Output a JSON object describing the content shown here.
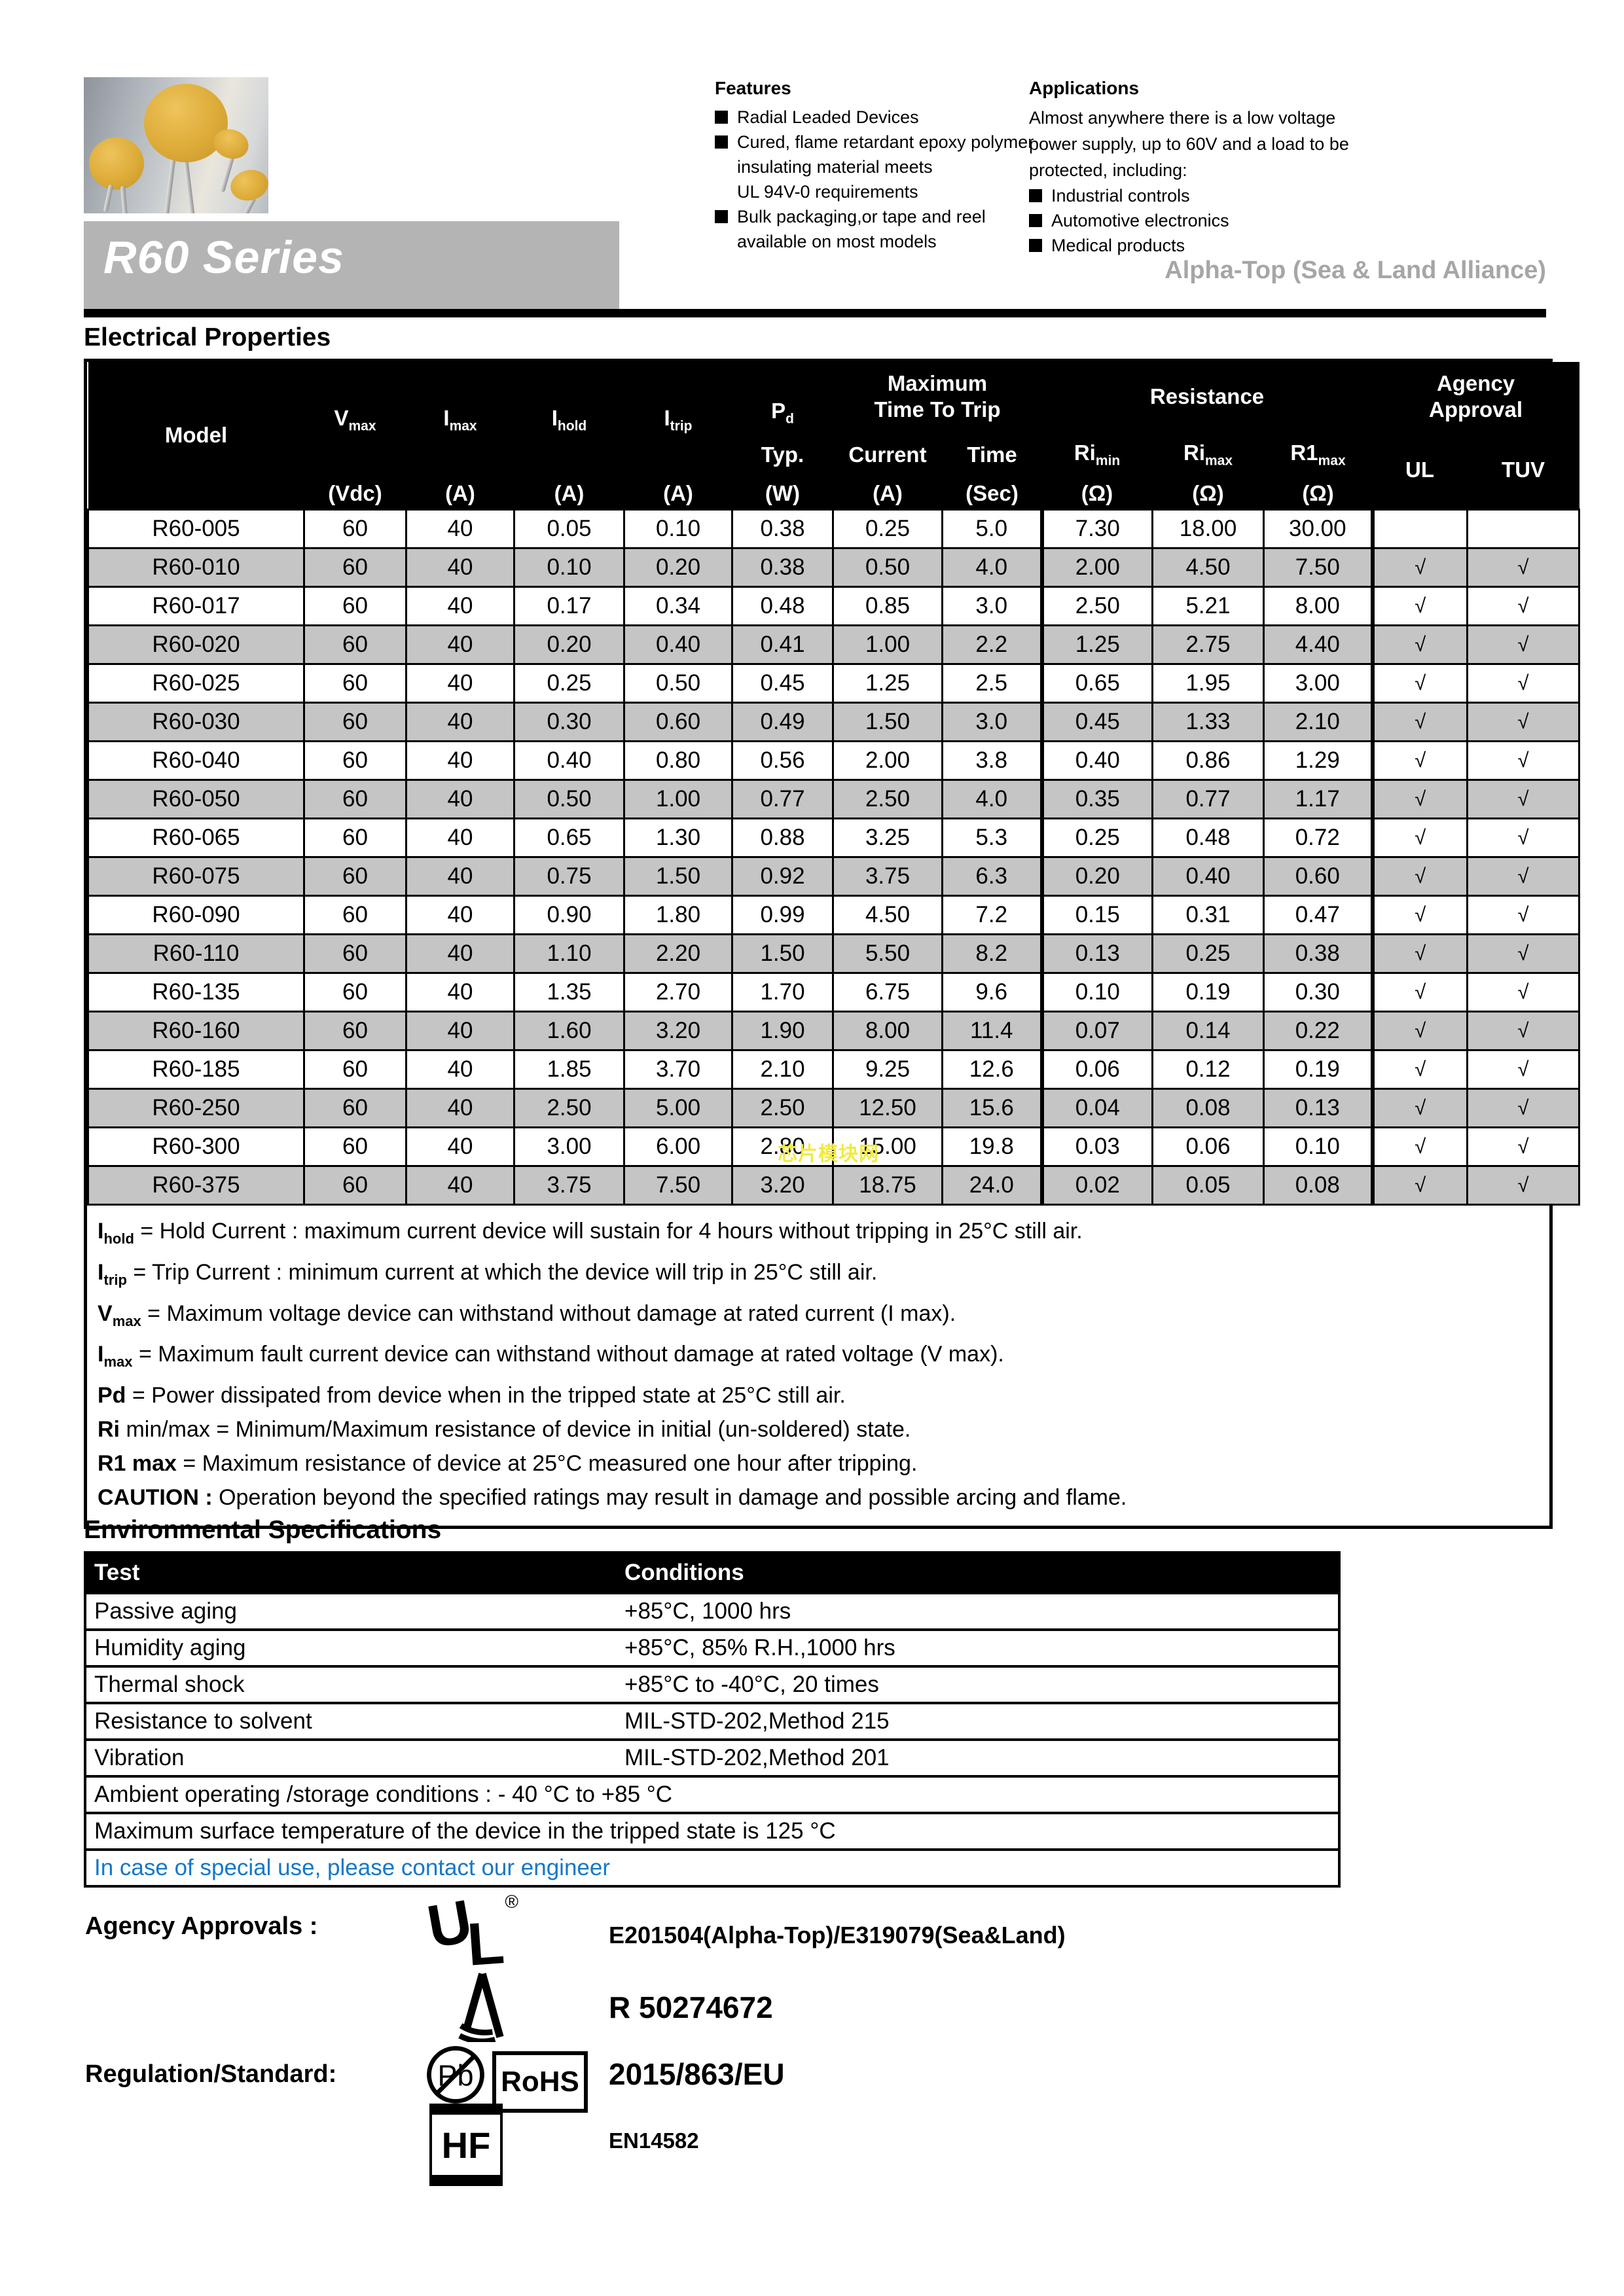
{
  "header": {
    "features": {
      "title": "Features",
      "items": [
        {
          "lines": [
            "Radial Leaded Devices"
          ]
        },
        {
          "lines": [
            "Cured, flame retardant epoxy polymer",
            "insulating material meets",
            "UL 94V-0 requirements"
          ]
        },
        {
          "lines": [
            "Bulk packaging,or tape and reel",
            "available on most models"
          ]
        }
      ]
    },
    "applications": {
      "title": "Applications",
      "intro_lines": [
        "Almost anywhere there is a low voltage",
        "power supply, up to 60V and a load to be",
        "protected, including:"
      ],
      "items": [
        "Industrial controls",
        "Automotive electronics",
        "Medical products"
      ]
    },
    "series_banner": "R60 Series",
    "alliance": "Alpha-Top (Sea & Land Alliance)"
  },
  "watermark": "芯片模块网",
  "electrical": {
    "section_title": "Electrical Properties",
    "header": {
      "model": "Model",
      "vmax_main": "V",
      "vmax_sub": "max",
      "imax_main": "I",
      "imax_sub": "max",
      "ihold_main": "I",
      "ihold_sub": "hold",
      "itrip_main": "I",
      "itrip_sub": "trip",
      "pd_main": "P",
      "pd_sub": "d",
      "pd_typ": "Typ.",
      "mtt_line1": "Maximum",
      "mtt_line2": "Time To Trip",
      "current": "Current",
      "time": "Time",
      "resistance": "Resistance",
      "rimin_main": "Ri",
      "rimin_sub": "min",
      "rimax_main": "Ri",
      "rimax_sub": "max",
      "r1max_main": "R1",
      "r1max_sub": "max",
      "agency_line1": "Agency",
      "agency_line2": "Approval",
      "ul": "UL",
      "tuv": "TUV",
      "units": [
        "(Vdc)",
        "(A)",
        "(A)",
        "(A)",
        "(W)",
        "(A)",
        "(Sec)",
        "(Ω)",
        "(Ω)",
        "(Ω)"
      ]
    },
    "rows": [
      [
        "R60-005",
        "60",
        "40",
        "0.05",
        "0.10",
        "0.38",
        "0.25",
        "5.0",
        "7.30",
        "18.00",
        "30.00",
        "",
        ""
      ],
      [
        "R60-010",
        "60",
        "40",
        "0.10",
        "0.20",
        "0.38",
        "0.50",
        "4.0",
        "2.00",
        "4.50",
        "7.50",
        "√",
        "√"
      ],
      [
        "R60-017",
        "60",
        "40",
        "0.17",
        "0.34",
        "0.48",
        "0.85",
        "3.0",
        "2.50",
        "5.21",
        "8.00",
        "√",
        "√"
      ],
      [
        "R60-020",
        "60",
        "40",
        "0.20",
        "0.40",
        "0.41",
        "1.00",
        "2.2",
        "1.25",
        "2.75",
        "4.40",
        "√",
        "√"
      ],
      [
        "R60-025",
        "60",
        "40",
        "0.25",
        "0.50",
        "0.45",
        "1.25",
        "2.5",
        "0.65",
        "1.95",
        "3.00",
        "√",
        "√"
      ],
      [
        "R60-030",
        "60",
        "40",
        "0.30",
        "0.60",
        "0.49",
        "1.50",
        "3.0",
        "0.45",
        "1.33",
        "2.10",
        "√",
        "√"
      ],
      [
        "R60-040",
        "60",
        "40",
        "0.40",
        "0.80",
        "0.56",
        "2.00",
        "3.8",
        "0.40",
        "0.86",
        "1.29",
        "√",
        "√"
      ],
      [
        "R60-050",
        "60",
        "40",
        "0.50",
        "1.00",
        "0.77",
        "2.50",
        "4.0",
        "0.35",
        "0.77",
        "1.17",
        "√",
        "√"
      ],
      [
        "R60-065",
        "60",
        "40",
        "0.65",
        "1.30",
        "0.88",
        "3.25",
        "5.3",
        "0.25",
        "0.48",
        "0.72",
        "√",
        "√"
      ],
      [
        "R60-075",
        "60",
        "40",
        "0.75",
        "1.50",
        "0.92",
        "3.75",
        "6.3",
        "0.20",
        "0.40",
        "0.60",
        "√",
        "√"
      ],
      [
        "R60-090",
        "60",
        "40",
        "0.90",
        "1.80",
        "0.99",
        "4.50",
        "7.2",
        "0.15",
        "0.31",
        "0.47",
        "√",
        "√"
      ],
      [
        "R60-110",
        "60",
        "40",
        "1.10",
        "2.20",
        "1.50",
        "5.50",
        "8.2",
        "0.13",
        "0.25",
        "0.38",
        "√",
        "√"
      ],
      [
        "R60-135",
        "60",
        "40",
        "1.35",
        "2.70",
        "1.70",
        "6.75",
        "9.6",
        "0.10",
        "0.19",
        "0.30",
        "√",
        "√"
      ],
      [
        "R60-160",
        "60",
        "40",
        "1.60",
        "3.20",
        "1.90",
        "8.00",
        "11.4",
        "0.07",
        "0.14",
        "0.22",
        "√",
        "√"
      ],
      [
        "R60-185",
        "60",
        "40",
        "1.85",
        "3.70",
        "2.10",
        "9.25",
        "12.6",
        "0.06",
        "0.12",
        "0.19",
        "√",
        "√"
      ],
      [
        "R60-250",
        "60",
        "40",
        "2.50",
        "5.00",
        "2.50",
        "12.50",
        "15.6",
        "0.04",
        "0.08",
        "0.13",
        "√",
        "√"
      ],
      [
        "R60-300",
        "60",
        "40",
        "3.00",
        "6.00",
        "2.80",
        "15.00",
        "19.8",
        "0.03",
        "0.06",
        "0.10",
        "√",
        "√"
      ],
      [
        "R60-375",
        "60",
        "40",
        "3.75",
        "7.50",
        "3.20",
        "18.75",
        "24.0",
        "0.02",
        "0.05",
        "0.08",
        "√",
        "√"
      ]
    ],
    "notes": [
      {
        "term": "Ihold",
        "main": "I",
        "sub": "hold",
        "rest": "= Hold Current : maximum current device will sustain for 4 hours without tripping in 25°C still air."
      },
      {
        "term": "Itrip",
        "main": "I",
        "sub": "trip",
        "rest": "= Trip Current : minimum current at which the device will trip in 25°C still air."
      },
      {
        "term": "Vmax",
        "main": "V",
        "sub": "max",
        "rest": "= Maximum voltage device can withstand without damage at rated current (I max)."
      },
      {
        "term": "Imax",
        "main": "I",
        "sub": "max",
        "rest": "= Maximum fault current device can withstand without damage at rated voltage (V max)."
      },
      {
        "term": "Pd",
        "main": "Pd",
        "sub": "",
        "rest": "= Power dissipated from device when in the tripped state at 25°C still air."
      },
      {
        "term": "Ri min/max",
        "main": "Ri",
        "sub": "",
        "rest": "min/max  = Minimum/Maximum resistance of device in initial (un-soldered) state."
      },
      {
        "term": "R1 max",
        "main": "R1 max",
        "sub": "",
        "rest": "= Maximum resistance of device at 25°C measured one hour after tripping."
      },
      {
        "term": "CAUTION",
        "main": "CAUTION :",
        "sub": "",
        "rest": "Operation beyond the specified ratings may result in damage and possible arcing and flame."
      }
    ]
  },
  "environmental": {
    "section_title": "Environmental Specifications",
    "header": [
      "Test",
      "Conditions"
    ],
    "rows": [
      [
        "Passive aging",
        "+85°C, 1000 hrs"
      ],
      [
        "Humidity aging",
        "+85°C, 85% R.H.,1000 hrs"
      ],
      [
        "Thermal shock",
        "+85°C to -40°C, 20 times"
      ],
      [
        "Resistance to solvent",
        "MIL-STD-202,Method 215"
      ],
      [
        "Vibration",
        "MIL-STD-202,Method 201"
      ]
    ],
    "full_rows": [
      "Ambient operating /storage conditions :   - 40 °C to +85 °C",
      "Maximum surface temperature of the device in the tripped state is 125 °C"
    ],
    "special_note": "In case of special use, please contact our engineer"
  },
  "approvals": {
    "label": "Agency Approvals :",
    "regulation_label": "Regulation/Standard:",
    "ul_mark": {
      "u": "U",
      "l": "L",
      "registered": "®"
    },
    "ul_text": "E201504(Alpha-Top)/E319079(Sea&Land)",
    "tuv_text": "R 50274672",
    "pb_label": "Pb",
    "rohs_label": "RoHS",
    "rohs_text": "2015/863/EU",
    "hf_label": "HF",
    "hf_text": "EN14582"
  },
  "colors": {
    "banner_gray": "#b4b4b4",
    "stripe_gray": "#c5c5c5",
    "alliance_text_gray": "#a6a6a6",
    "note_blue": "#1478c8",
    "watermark_yellow": "#f2ea3e",
    "header_black": "#000000"
  }
}
